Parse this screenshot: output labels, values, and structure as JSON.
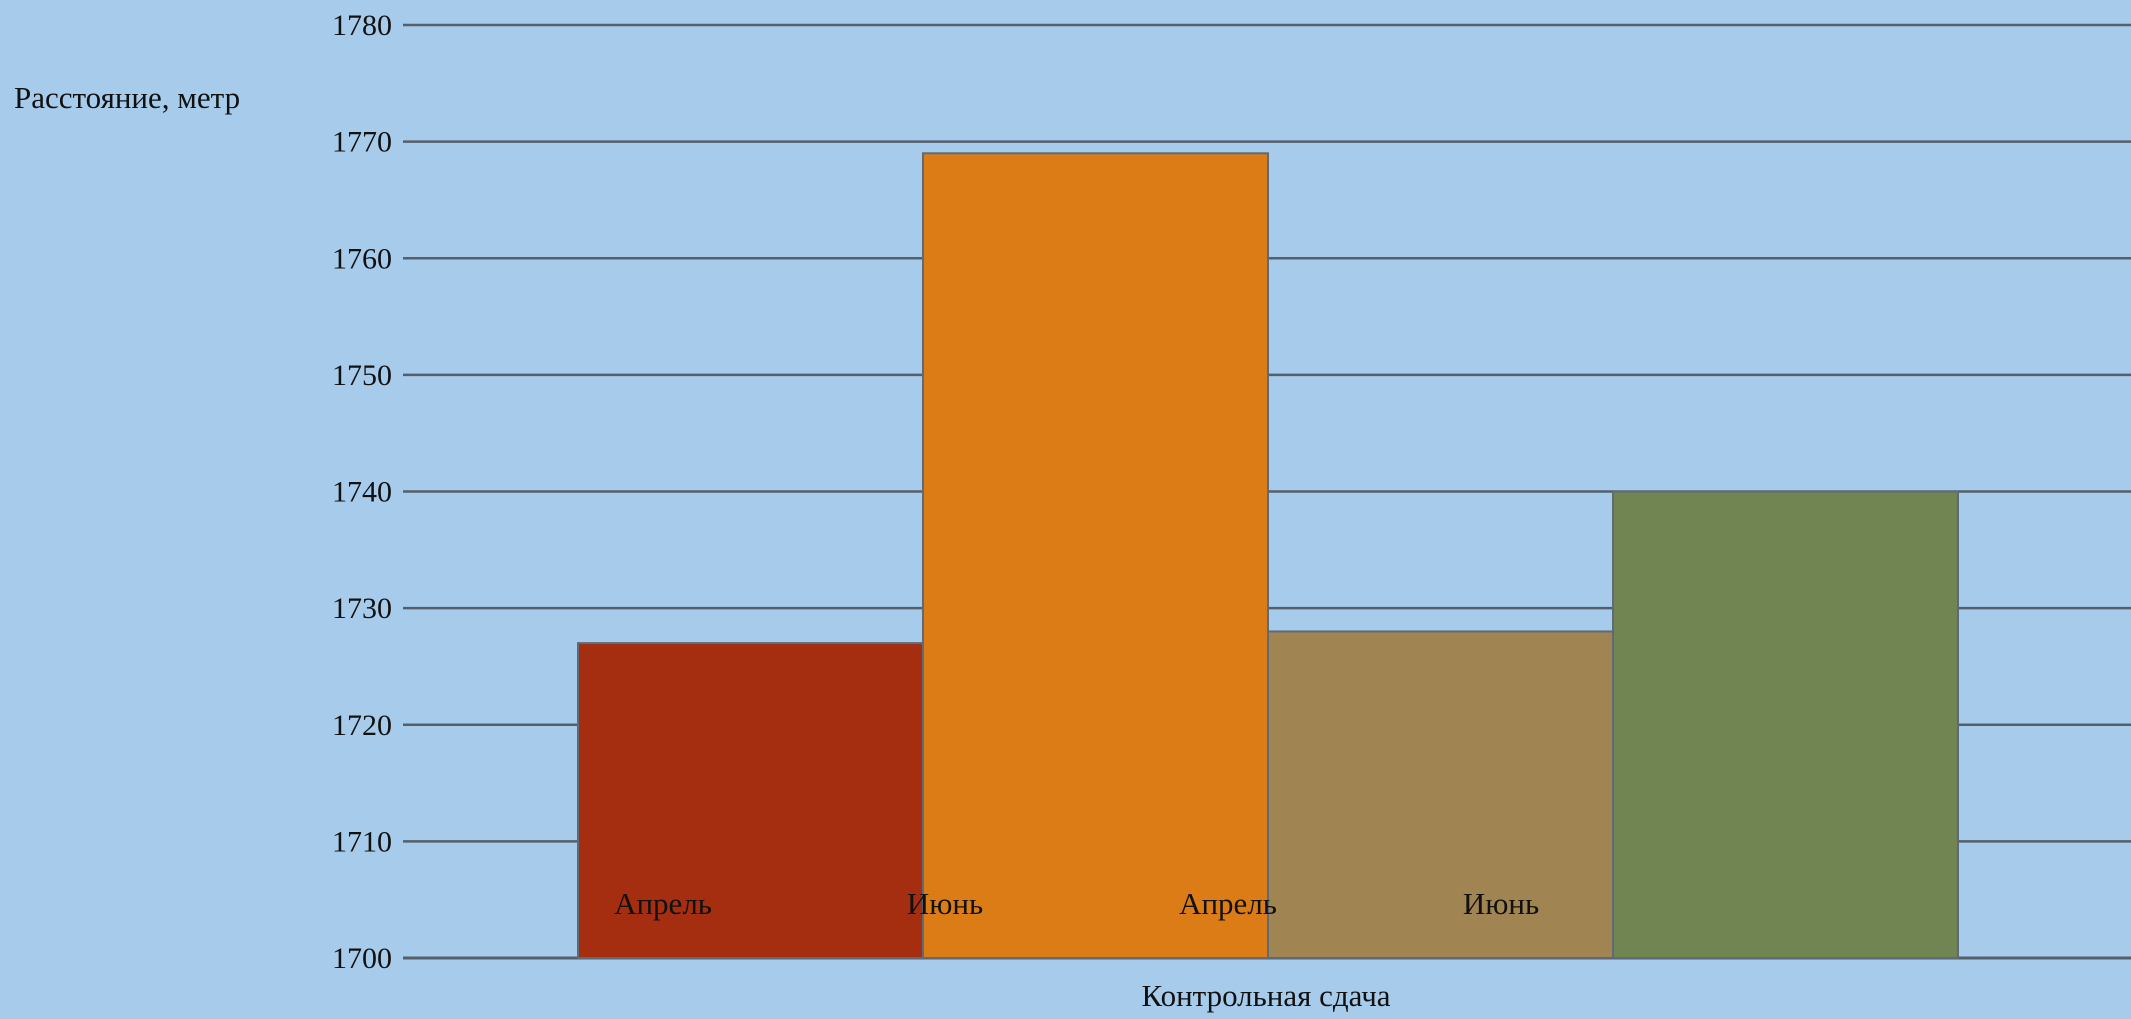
{
  "chart_data": {
    "type": "bar",
    "title": "",
    "xlabel": "Контрольная сдача",
    "ylabel": "Расстояние, метр",
    "ylim": [
      1700,
      1780
    ],
    "yticks": [
      1700,
      1710,
      1720,
      1730,
      1740,
      1750,
      1760,
      1770,
      1780
    ],
    "grid": true,
    "legend": "none",
    "bars": [
      {
        "value": 1727,
        "color": "#a52e10"
      },
      {
        "value": 1769,
        "color": "#dc7c17"
      },
      {
        "value": 1728,
        "color": "#a08552"
      },
      {
        "value": 1740,
        "color": "#718552"
      }
    ],
    "annotations": [
      "Апрель",
      "Июнь",
      "Апрель",
      "Июнь"
    ]
  },
  "colors": {
    "background": "#a6cbeb",
    "gridline": "#555f6b",
    "bar_outline": "#5e6a78"
  }
}
